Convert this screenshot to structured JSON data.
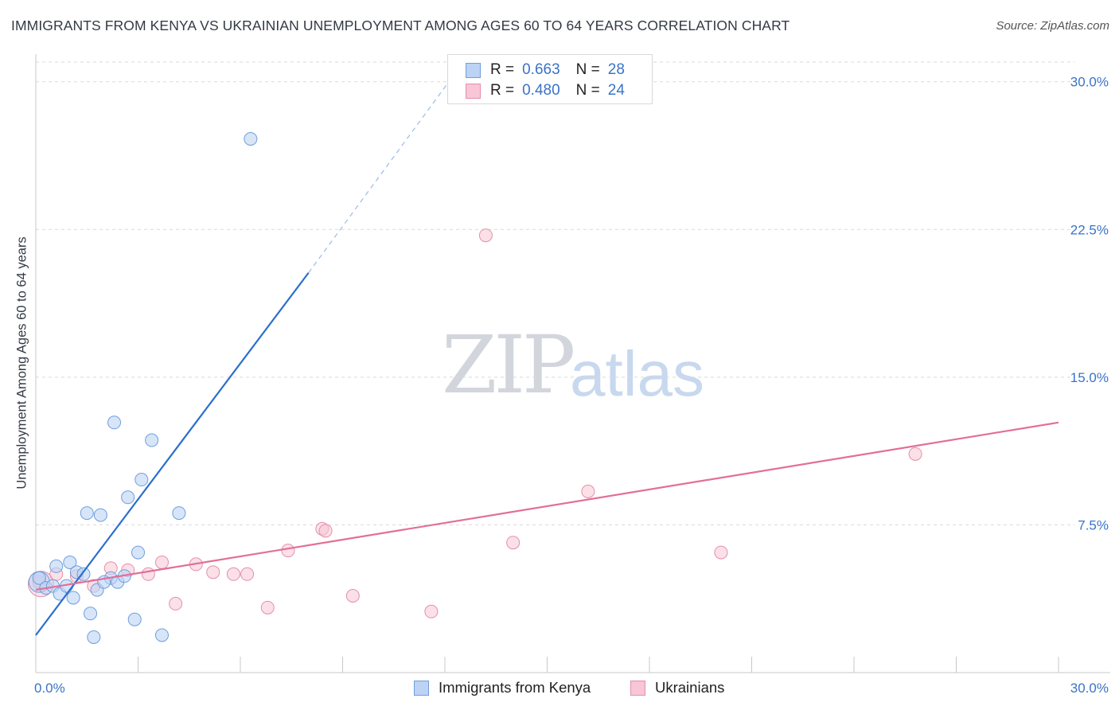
{
  "title": "IMMIGRANTS FROM KENYA VS UKRAINIAN UNEMPLOYMENT AMONG AGES 60 TO 64 YEARS CORRELATION CHART",
  "source": "Source: ZipAtlas.com",
  "watermark": {
    "zip": "ZIP",
    "atlas": "atlas"
  },
  "legend_top": [
    {
      "r_label": "R =",
      "r_value": "0.663",
      "n_label": "N =",
      "n_value": "28"
    },
    {
      "r_label": "R =",
      "r_value": "0.480",
      "n_label": "N =",
      "n_value": "24"
    }
  ],
  "legend_bottom": [
    "Immigrants from Kenya",
    "Ukrainians"
  ],
  "colors": {
    "kenya_fill": "#bcd3f5",
    "kenya_stroke": "#6f9edc",
    "kenya_line": "#2b6fcc",
    "ukr_fill": "#f8c6d6",
    "ukr_stroke": "#e58eaa",
    "ukr_line": "#e36f96",
    "tick_label": "#3a73c8",
    "grid": "#d9d9d9"
  },
  "chart_data": {
    "type": "scatter",
    "title": "IMMIGRANTS FROM KENYA VS UKRAINIAN UNEMPLOYMENT AMONG AGES 60 TO 64 YEARS CORRELATION CHART",
    "xlabel": "",
    "ylabel": "Unemployment Among Ages 60 to 64 years",
    "xlim": [
      0,
      30
    ],
    "ylim": [
      0,
      31
    ],
    "x_tick_labels": [
      "0.0%",
      "30.0%"
    ],
    "y_ticks": [
      7.5,
      15.0,
      22.5,
      30.0
    ],
    "y_tick_labels": [
      "7.5%",
      "15.0%",
      "22.5%",
      "30.0%"
    ],
    "grid": true,
    "series": [
      {
        "name": "Immigrants from Kenya",
        "points": [
          [
            0.1,
            4.8
          ],
          [
            0.3,
            4.3
          ],
          [
            0.5,
            4.4
          ],
          [
            0.6,
            5.4
          ],
          [
            0.7,
            4.0
          ],
          [
            0.9,
            4.4
          ],
          [
            1.0,
            5.6
          ],
          [
            1.1,
            3.8
          ],
          [
            1.2,
            5.1
          ],
          [
            1.4,
            5.0
          ],
          [
            1.5,
            8.1
          ],
          [
            1.6,
            3.0
          ],
          [
            1.7,
            1.8
          ],
          [
            1.8,
            4.2
          ],
          [
            1.9,
            8.0
          ],
          [
            2.2,
            4.8
          ],
          [
            2.3,
            12.7
          ],
          [
            2.4,
            4.6
          ],
          [
            2.6,
            4.9
          ],
          [
            2.7,
            8.9
          ],
          [
            2.9,
            2.7
          ],
          [
            3.0,
            6.1
          ],
          [
            3.1,
            9.8
          ],
          [
            3.4,
            11.8
          ],
          [
            3.7,
            1.9
          ],
          [
            4.2,
            8.1
          ],
          [
            6.3,
            27.1
          ],
          [
            2.0,
            4.6
          ]
        ],
        "trendline": {
          "x": [
            0,
            8.0
          ],
          "y": [
            1.9,
            20.3
          ],
          "dashed_extension": {
            "x": [
              8.0,
              12.2
            ],
            "y": [
              20.3,
              30.2
            ]
          }
        }
      },
      {
        "name": "Ukrainians",
        "points": [
          [
            0.1,
            4.6
          ],
          [
            0.6,
            5.0
          ],
          [
            1.2,
            4.9
          ],
          [
            1.7,
            4.4
          ],
          [
            2.2,
            5.3
          ],
          [
            2.7,
            5.2
          ],
          [
            3.3,
            5.0
          ],
          [
            3.7,
            5.6
          ],
          [
            4.1,
            3.5
          ],
          [
            4.7,
            5.5
          ],
          [
            5.2,
            5.1
          ],
          [
            5.8,
            5.0
          ],
          [
            6.2,
            5.0
          ],
          [
            6.8,
            3.3
          ],
          [
            7.4,
            6.2
          ],
          [
            8.4,
            7.3
          ],
          [
            8.5,
            7.2
          ],
          [
            9.3,
            3.9
          ],
          [
            11.6,
            3.1
          ],
          [
            13.2,
            22.2
          ],
          [
            14.0,
            6.6
          ],
          [
            16.2,
            9.2
          ],
          [
            20.1,
            6.1
          ],
          [
            25.8,
            11.1
          ]
        ],
        "trendline": {
          "x": [
            0,
            30
          ],
          "y": [
            4.2,
            12.7
          ]
        }
      }
    ]
  }
}
